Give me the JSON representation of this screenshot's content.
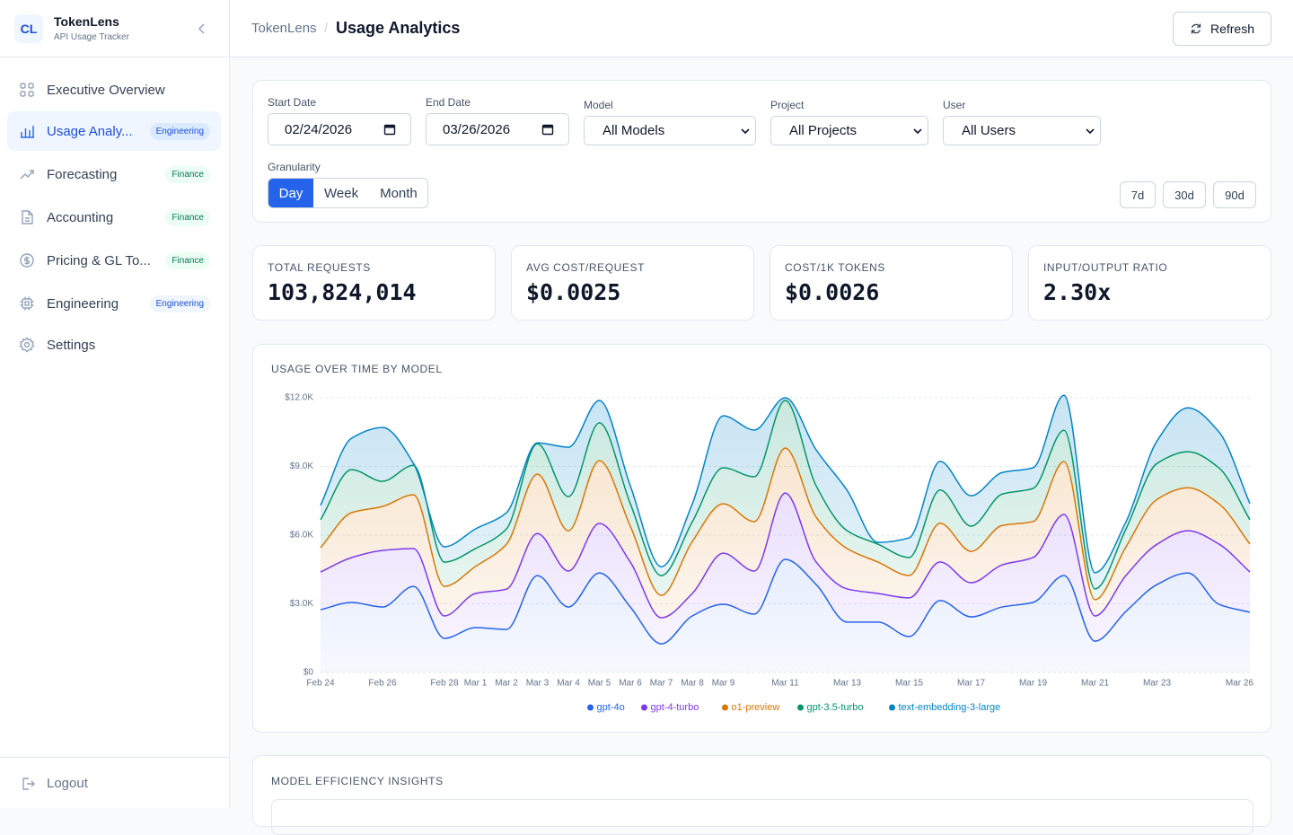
{
  "sidebar": {
    "logo": "CL",
    "brand": "TokenLens",
    "tagline": "API Usage Tracker",
    "nav": [
      {
        "label": "Executive Overview"
      },
      {
        "label": "Usage Analy...",
        "badge": "Engineering",
        "active": true
      },
      {
        "label": "Forecasting",
        "badge": "Finance"
      },
      {
        "label": "Accounting",
        "badge": "Finance"
      },
      {
        "label": "Pricing & GL To...",
        "badge": "Finance"
      },
      {
        "label": "Engineering",
        "badge": "Engineering"
      },
      {
        "label": "Settings"
      }
    ],
    "logout": "Logout"
  },
  "header": {
    "breadcrumb_root": "TokenLens",
    "breadcrumb_sep": "/",
    "title": "Usage Analytics",
    "refresh": "Refresh"
  },
  "filters": {
    "start_date": {
      "label": "Start Date",
      "value": "02/24/2026"
    },
    "end_date": {
      "label": "End Date",
      "value": "03/26/2026"
    },
    "model": {
      "label": "Model",
      "value": "All Models"
    },
    "project": {
      "label": "Project",
      "value": "All Projects"
    },
    "user": {
      "label": "User",
      "value": "All Users"
    },
    "granularity": {
      "label": "Granularity",
      "options": [
        {
          "label": "Day",
          "active": true
        },
        {
          "label": "Week"
        },
        {
          "label": "Month"
        }
      ]
    },
    "ranges": [
      "7d",
      "30d",
      "90d"
    ]
  },
  "kpis": [
    {
      "label": "TOTAL REQUESTS",
      "value": "103,824,014"
    },
    {
      "label": "AVG COST/REQUEST",
      "value": "$0.0025"
    },
    {
      "label": "COST/1K TOKENS",
      "value": "$0.0026"
    },
    {
      "label": "INPUT/OUTPUT RATIO",
      "value": "2.30x"
    }
  ],
  "chart_data": {
    "type": "area",
    "stacked": true,
    "title": "USAGE OVER TIME BY MODEL",
    "categories": [
      "Feb 24",
      null,
      "Feb 26",
      null,
      "Feb 28",
      "Mar 1",
      "Mar 2",
      "Mar 3",
      "Mar 4",
      "Mar 5",
      "Mar 6",
      "Mar 7",
      "Mar 8",
      "Mar 9",
      null,
      "Mar 11",
      null,
      "Mar 13",
      null,
      "Mar 15",
      null,
      "Mar 17",
      null,
      "Mar 19",
      null,
      "Mar 21",
      null,
      "Mar 23",
      null,
      null,
      "Mar 26"
    ],
    "series": [
      {
        "name": "gpt-4o",
        "color": "#2563eb",
        "values": [
          2740,
          3060,
          2860,
          3760,
          1490,
          1960,
          1880,
          4230,
          2860,
          4350,
          2860,
          1250,
          2470,
          2980,
          2550,
          4940,
          3840,
          2200,
          2200,
          1570,
          3140,
          2430,
          2860,
          3060,
          4230,
          1370,
          2670,
          3840,
          4350,
          2980,
          2630
        ]
      },
      {
        "name": "gpt-4-turbo",
        "color": "#7c3aed",
        "values": [
          1650,
          1960,
          2470,
          1650,
          980,
          1490,
          1760,
          1840,
          1570,
          2160,
          1960,
          1140,
          980,
          2230,
          1880,
          2900,
          980,
          1450,
          1250,
          1690,
          1690,
          1490,
          1840,
          1960,
          2670,
          1100,
          1570,
          1760,
          1840,
          2630,
          1760
        ]
      },
      {
        "name": "o1-preview",
        "color": "#d97706",
        "values": [
          1060,
          1960,
          1920,
          2350,
          1290,
          1180,
          1960,
          2590,
          1760,
          2740,
          1570,
          980,
          2270,
          2160,
          2160,
          1960,
          1960,
          1760,
          1370,
          980,
          1690,
          1370,
          1720,
          1570,
          2310,
          710,
          1250,
          1960,
          1880,
          1760,
          1220
        ]
      },
      {
        "name": "gpt-3.5-turbo",
        "color": "#059669",
        "values": [
          1220,
          1880,
          1100,
          1290,
          1060,
          780,
          670,
          1330,
          1490,
          1650,
          980,
          860,
          860,
          1570,
          1960,
          2080,
          1370,
          780,
          780,
          780,
          1450,
          1100,
          1370,
          1450,
          1370,
          470,
          780,
          1570,
          1570,
          1570,
          1060
        ]
      },
      {
        "name": "text-embedding-3-large",
        "color": "#0284c7",
        "values": [
          630,
          1370,
          2350,
          80,
          670,
          860,
          710,
          40,
          2160,
          980,
          780,
          390,
          780,
          2270,
          2040,
          120,
          1570,
          1760,
          80,
          860,
          1250,
          1330,
          940,
          900,
          1530,
          710,
          310,
          980,
          1920,
          1570,
          710
        ]
      }
    ],
    "ylim": [
      0,
      12000
    ],
    "yticks": [
      {
        "value": 0,
        "label": "$0"
      },
      {
        "value": 3000,
        "label": "$3.0K"
      },
      {
        "value": 6000,
        "label": "$6.0K"
      },
      {
        "value": 9000,
        "label": "$9.0K"
      },
      {
        "value": 12000,
        "label": "$12.0K"
      }
    ],
    "grid": true,
    "legend": "bottom"
  },
  "insights": {
    "title": "MODEL EFFICIENCY INSIGHTS"
  }
}
